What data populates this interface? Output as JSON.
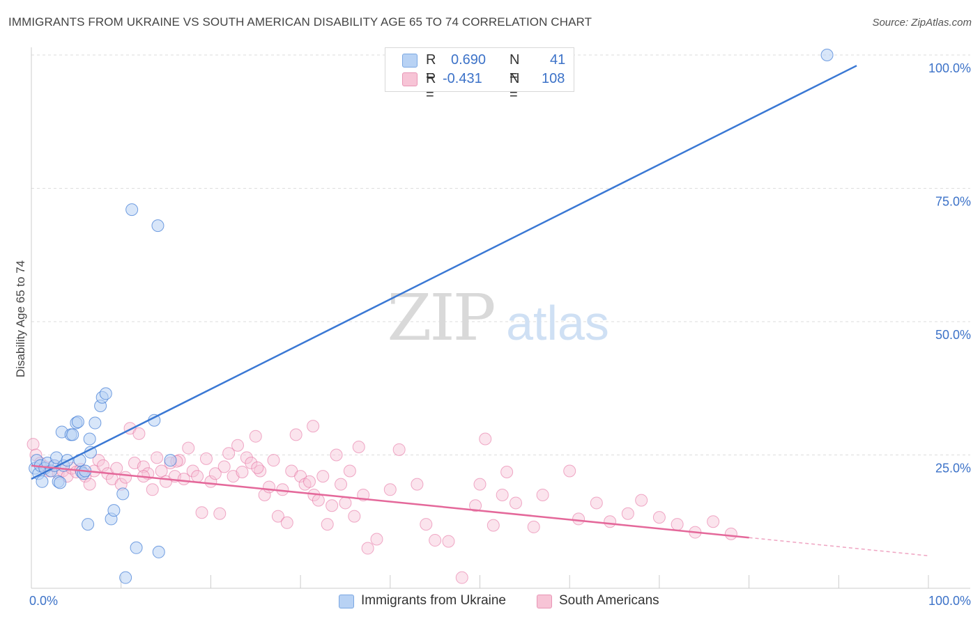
{
  "title": "IMMIGRANTS FROM UKRAINE VS SOUTH AMERICAN DISABILITY AGE 65 TO 74 CORRELATION CHART",
  "source": "Source: ZipAtlas.com",
  "watermark": {
    "zip": "ZIP",
    "atlas": "atlas"
  },
  "colors": {
    "blue": "#3a78d4",
    "blue_fill": "#b8d2f4",
    "pink": "#e4689a",
    "pink_fill": "#f7c4d6",
    "axis_label": "#3c72c8",
    "grid": "#dddddd"
  },
  "legend": {
    "r_label": "R =",
    "n_label": "N =",
    "rows": [
      {
        "r": "0.690",
        "n": "41"
      },
      {
        "r": "-0.431",
        "n": "108"
      }
    ]
  },
  "chart_data": {
    "type": "scatter",
    "title": "IMMIGRANTS FROM UKRAINE VS SOUTH AMERICAN DISABILITY AGE 65 TO 74 CORRELATION CHART",
    "xlabel": "",
    "ylabel": "Disability Age 65 to 74",
    "xlim": [
      0,
      100
    ],
    "ylim": [
      0,
      100
    ],
    "x_tick_labels": [
      "0.0%",
      "100.0%"
    ],
    "y_tick_labels": [
      "25.0%",
      "50.0%",
      "75.0%",
      "100.0%"
    ],
    "y_ticks": [
      25,
      50,
      75,
      100
    ],
    "grid": true,
    "legend_position": "top-center",
    "series": [
      {
        "name": "Immigrants from Ukraine",
        "color": "blue",
        "R": 0.69,
        "N": 41,
        "trend": {
          "x": [
            0,
            92
          ],
          "y": [
            20.5,
            98
          ]
        },
        "points": [
          [
            0.4,
            22.5
          ],
          [
            0.6,
            24
          ],
          [
            0.8,
            21.5
          ],
          [
            1.0,
            23
          ],
          [
            1.2,
            20
          ],
          [
            1.5,
            22.5
          ],
          [
            1.8,
            23.5
          ],
          [
            2.2,
            22
          ],
          [
            2.6,
            23
          ],
          [
            2.8,
            24.5
          ],
          [
            3.0,
            20
          ],
          [
            3.2,
            19.8
          ],
          [
            3.4,
            29.3
          ],
          [
            3.6,
            23
          ],
          [
            4.0,
            24
          ],
          [
            4.4,
            28.8
          ],
          [
            4.6,
            28.8
          ],
          [
            5.0,
            31
          ],
          [
            5.2,
            31.2
          ],
          [
            5.4,
            24
          ],
          [
            5.6,
            21.8
          ],
          [
            5.8,
            21.5
          ],
          [
            6.0,
            22
          ],
          [
            6.3,
            12
          ],
          [
            6.5,
            28
          ],
          [
            6.6,
            25.5
          ],
          [
            7.1,
            31
          ],
          [
            7.7,
            34.2
          ],
          [
            7.9,
            35.8
          ],
          [
            8.3,
            36.5
          ],
          [
            8.9,
            13
          ],
          [
            9.2,
            14.6
          ],
          [
            10.2,
            17.7
          ],
          [
            10.5,
            2
          ],
          [
            11.2,
            71
          ],
          [
            11.7,
            7.6
          ],
          [
            14.1,
            68
          ],
          [
            14.2,
            6.8
          ],
          [
            15.5,
            24
          ],
          [
            13.7,
            31.5
          ],
          [
            88.7,
            100
          ]
        ]
      },
      {
        "name": "South Americans",
        "color": "pink",
        "R": -0.431,
        "N": 108,
        "trend": {
          "x": [
            0,
            80
          ],
          "y": [
            23,
            9.5
          ]
        },
        "trend_dashed": {
          "x": [
            80,
            100
          ],
          "y": [
            9.5,
            6.1
          ]
        },
        "points": [
          [
            0.2,
            27
          ],
          [
            0.5,
            25
          ],
          [
            1.0,
            23.5
          ],
          [
            1.5,
            22.8
          ],
          [
            2.0,
            22
          ],
          [
            2.5,
            23
          ],
          [
            3.0,
            21.5
          ],
          [
            3.5,
            22
          ],
          [
            4.0,
            21
          ],
          [
            4.5,
            22.5
          ],
          [
            5.0,
            21.8
          ],
          [
            5.5,
            22.3
          ],
          [
            6.0,
            21
          ],
          [
            6.5,
            19.5
          ],
          [
            7.0,
            22
          ],
          [
            7.5,
            24
          ],
          [
            8.0,
            23
          ],
          [
            8.5,
            21.5
          ],
          [
            9.0,
            20.5
          ],
          [
            9.5,
            22.5
          ],
          [
            10.0,
            19.5
          ],
          [
            10.5,
            20.8
          ],
          [
            11.0,
            30
          ],
          [
            11.5,
            23.5
          ],
          [
            12.0,
            29
          ],
          [
            12.5,
            22.8
          ],
          [
            13.0,
            21.5
          ],
          [
            13.5,
            18.5
          ],
          [
            14.0,
            24.5
          ],
          [
            14.5,
            22
          ],
          [
            15.0,
            20
          ],
          [
            15.5,
            23.5
          ],
          [
            16.0,
            21
          ],
          [
            16.5,
            24
          ],
          [
            17.0,
            20.5
          ],
          [
            17.5,
            26.3
          ],
          [
            18.0,
            22
          ],
          [
            18.5,
            21
          ],
          [
            19.0,
            14.2
          ],
          [
            19.5,
            24.3
          ],
          [
            20.0,
            20
          ],
          [
            20.5,
            21.5
          ],
          [
            21.0,
            14
          ],
          [
            21.5,
            22.8
          ],
          [
            22.0,
            25.3
          ],
          [
            22.5,
            21
          ],
          [
            23.0,
            26.8
          ],
          [
            23.5,
            21.8
          ],
          [
            24.0,
            24.5
          ],
          [
            24.5,
            23.5
          ],
          [
            25.0,
            28.5
          ],
          [
            25.5,
            22
          ],
          [
            26.0,
            17.5
          ],
          [
            26.5,
            19
          ],
          [
            27.0,
            24
          ],
          [
            27.5,
            13.5
          ],
          [
            28.0,
            18.5
          ],
          [
            28.5,
            12.3
          ],
          [
            29.0,
            22
          ],
          [
            29.5,
            28.8
          ],
          [
            30.0,
            21
          ],
          [
            30.5,
            19.5
          ],
          [
            31.0,
            20
          ],
          [
            31.5,
            17.5
          ],
          [
            32.0,
            16.5
          ],
          [
            32.5,
            21
          ],
          [
            33.0,
            12
          ],
          [
            33.5,
            15.5
          ],
          [
            34.0,
            25
          ],
          [
            34.5,
            19.5
          ],
          [
            35.0,
            16
          ],
          [
            35.5,
            22
          ],
          [
            36.0,
            13.5
          ],
          [
            36.5,
            26.5
          ],
          [
            37.0,
            17.5
          ],
          [
            37.5,
            7.5
          ],
          [
            38.5,
            9.2
          ],
          [
            40.0,
            18.5
          ],
          [
            41.0,
            26
          ],
          [
            43.0,
            19.5
          ],
          [
            44.0,
            12
          ],
          [
            45.0,
            9
          ],
          [
            46.5,
            8.8
          ],
          [
            48.0,
            2
          ],
          [
            49.5,
            15.5
          ],
          [
            50.0,
            19.5
          ],
          [
            51.5,
            11.8
          ],
          [
            52.5,
            17.5
          ],
          [
            53.0,
            21.8
          ],
          [
            54.0,
            16
          ],
          [
            56.0,
            11.5
          ],
          [
            57.0,
            17.5
          ],
          [
            60.0,
            22
          ],
          [
            61.0,
            13
          ],
          [
            63.0,
            16
          ],
          [
            64.5,
            12.5
          ],
          [
            66.5,
            14
          ],
          [
            68.0,
            16.5
          ],
          [
            70.0,
            13.3
          ],
          [
            72.0,
            12
          ],
          [
            74.0,
            10.5
          ],
          [
            76.0,
            12.5
          ],
          [
            78.0,
            10.2
          ],
          [
            12.5,
            21
          ],
          [
            16.2,
            23.8
          ],
          [
            25.2,
            22.6
          ],
          [
            31.4,
            30.4
          ],
          [
            50.6,
            28
          ]
        ]
      }
    ]
  }
}
